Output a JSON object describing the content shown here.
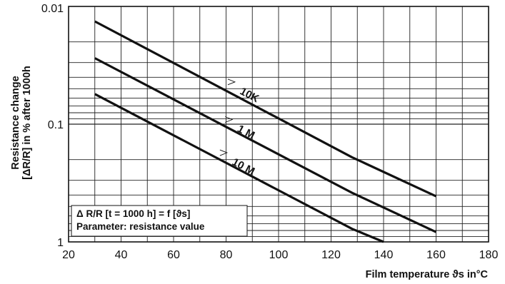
{
  "chart_data": {
    "type": "line",
    "xlabel": "Film temperature ϑs in°C",
    "ylabel_line1": "Resistance change",
    "ylabel_line2": "[ΔR/R] in % after 1000h",
    "xlim": [
      20,
      180
    ],
    "ylim": [
      0.01,
      1
    ],
    "y_scale": "log",
    "y_inverted": true,
    "grid": true,
    "x_ticks": [
      "20",
      "40",
      "60",
      "80",
      "100",
      "120",
      "140",
      "160",
      "180"
    ],
    "y_ticks": [
      "0.01",
      "0.1",
      "1"
    ],
    "series": [
      {
        "name": "10K",
        "x": [
          30,
          128,
          160
        ],
        "y": [
          0.0134,
          0.191,
          0.41
        ]
      },
      {
        "name": "1 M",
        "x": [
          30,
          128,
          160
        ],
        "y": [
          0.0275,
          0.383,
          0.825
        ]
      },
      {
        "name": "10 M",
        "x": [
          30,
          128,
          140
        ],
        "y": [
          0.0555,
          0.775,
          1.0
        ]
      }
    ],
    "annotation": {
      "line1": "Δ R/R [t = 1000 h] = f [ϑs]",
      "line2": "Parameter: resistance value"
    }
  }
}
